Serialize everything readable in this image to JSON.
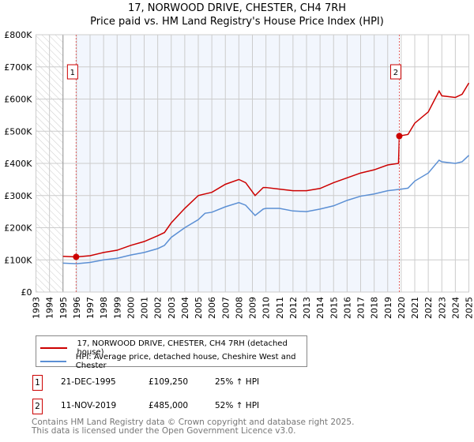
{
  "title": "17, NORWOOD DRIVE, CHESTER, CH4 7RH",
  "subtitle": "Price paid vs. HM Land Registry's House Price Index (HPI)",
  "chart_data": {
    "type": "line",
    "title": "17, NORWOOD DRIVE, CHESTER, CH4 7RH",
    "subtitle": "Price paid vs. HM Land Registry's House Price Index (HPI)",
    "xlim": [
      1993,
      2025
    ],
    "ylim": [
      0,
      800000
    ],
    "x_ticks": [
      "1993",
      "1994",
      "1995",
      "1996",
      "1997",
      "1998",
      "1999",
      "2000",
      "2001",
      "2002",
      "2003",
      "2004",
      "2005",
      "2006",
      "2007",
      "2008",
      "2009",
      "2010",
      "2011",
      "2012",
      "2013",
      "2014",
      "2015",
      "2016",
      "2017",
      "2018",
      "2019",
      "2020",
      "2021",
      "2022",
      "2023",
      "2024",
      "2025"
    ],
    "y_ticks": [
      {
        "v": 0,
        "l": "£0"
      },
      {
        "v": 100000,
        "l": "£100K"
      },
      {
        "v": 200000,
        "l": "£200K"
      },
      {
        "v": 300000,
        "l": "£300K"
      },
      {
        "v": 400000,
        "l": "£400K"
      },
      {
        "v": 500000,
        "l": "£500K"
      },
      {
        "v": 600000,
        "l": "£600K"
      },
      {
        "v": 700000,
        "l": "£700K"
      },
      {
        "v": 800000,
        "l": "£800K"
      }
    ],
    "grid": true,
    "series": [
      {
        "name": "17, NORWOOD DRIVE, CHESTER, CH4 7RH (detached house)",
        "color": "#cc0000",
        "x": [
          1995,
          1995.97,
          1997,
          1998,
          1999,
          2000,
          2001,
          2002,
          2002.5,
          2003,
          2004,
          2005,
          2006,
          2007,
          2008,
          2008.5,
          2009.2,
          2009.8,
          2010,
          2011,
          2012,
          2013,
          2014,
          2015,
          2016,
          2017,
          2018,
          2019,
          2019.8,
          2019.86,
          2020.5,
          2021,
          2022,
          2022.8,
          2023,
          2024,
          2024.5,
          2025
        ],
        "y": [
          111000,
          109250,
          113000,
          123000,
          130000,
          145000,
          157000,
          175000,
          185000,
          215000,
          260000,
          300000,
          310000,
          335000,
          350000,
          340000,
          300000,
          325000,
          325000,
          320000,
          315000,
          315000,
          322000,
          340000,
          355000,
          370000,
          380000,
          395000,
          400000,
          485000,
          490000,
          525000,
          560000,
          625000,
          610000,
          605000,
          615000,
          650000
        ]
      },
      {
        "name": "HPI: Average price, detached house, Cheshire West and Chester",
        "color": "#5b8fd4",
        "x": [
          1995,
          1996,
          1997,
          1998,
          1999,
          2000,
          2001,
          2002,
          2002.5,
          2003,
          2004,
          2005,
          2005.5,
          2006,
          2007,
          2008,
          2008.5,
          2009.2,
          2009.8,
          2010,
          2011,
          2012,
          2013,
          2014,
          2015,
          2016,
          2017,
          2018,
          2019,
          2020,
          2020.5,
          2021,
          2022,
          2022.8,
          2023,
          2024,
          2024.5,
          2025
        ],
        "y": [
          90000,
          88000,
          92000,
          100000,
          105000,
          115000,
          123000,
          135000,
          145000,
          170000,
          200000,
          225000,
          245000,
          248000,
          265000,
          278000,
          270000,
          238000,
          258000,
          260000,
          260000,
          252000,
          250000,
          258000,
          268000,
          285000,
          298000,
          305000,
          315000,
          320000,
          323000,
          345000,
          370000,
          410000,
          405000,
          400000,
          405000,
          425000
        ]
      }
    ],
    "sales": [
      {
        "label": "1",
        "x": 1995.97,
        "y": 109250
      },
      {
        "label": "2",
        "x": 2019.86,
        "y": 485000
      }
    ],
    "legend_placement": "below"
  },
  "legend": [
    "17, NORWOOD DRIVE, CHESTER, CH4 7RH (detached house)",
    "HPI: Average price, detached house, Cheshire West and Chester"
  ],
  "sales_table": [
    {
      "num": "1",
      "date": "21-DEC-1995",
      "price": "£109,250",
      "hpi": "25% ↑ HPI"
    },
    {
      "num": "2",
      "date": "11-NOV-2019",
      "price": "£485,000",
      "hpi": "52% ↑ HPI"
    }
  ],
  "footer": [
    "Contains HM Land Registry data © Crown copyright and database right 2025.",
    "This data is licensed under the Open Government Licence v3.0."
  ]
}
